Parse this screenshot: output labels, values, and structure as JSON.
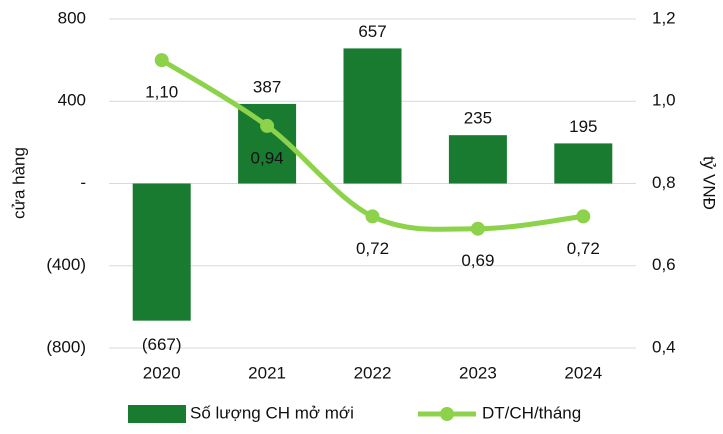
{
  "chart_data": {
    "type": "bar",
    "categories": [
      "2020",
      "2021",
      "2022",
      "2023",
      "2024"
    ],
    "series": [
      {
        "name": "Số lượng CH mở mới",
        "type": "bar",
        "color": "#197b30",
        "values": [
          -667,
          387,
          657,
          235,
          195
        ],
        "value_labels": [
          "(667)",
          "387",
          "657",
          "235",
          "195"
        ]
      },
      {
        "name": "DT/CH/tháng",
        "type": "line",
        "axis": "y2",
        "color": "#8cd24a",
        "values": [
          1.1,
          0.94,
          0.72,
          0.69,
          0.72
        ],
        "value_labels": [
          "1,10",
          "0,94",
          "0,72",
          "0,69",
          "0,72"
        ]
      }
    ],
    "ylabel": "cửa hàng",
    "y2label": "tỷ VNĐ",
    "ylim": [
      -800,
      800
    ],
    "yticks": [
      {
        "value": -800,
        "label": "(800)"
      },
      {
        "value": -400,
        "label": "(400)"
      },
      {
        "value": 0,
        "label": "-"
      },
      400,
      800
    ],
    "y2lim": [
      0.4,
      1.2
    ],
    "y2ticks": [
      {
        "value": 0.4,
        "label": "0,4"
      },
      {
        "value": 0.6,
        "label": "0,6"
      },
      {
        "value": 0.8,
        "label": "0,8"
      },
      {
        "value": 1.0,
        "label": "1,0"
      },
      {
        "value": 1.2,
        "label": "1,2"
      }
    ],
    "grid": true,
    "legend": "bottom"
  }
}
